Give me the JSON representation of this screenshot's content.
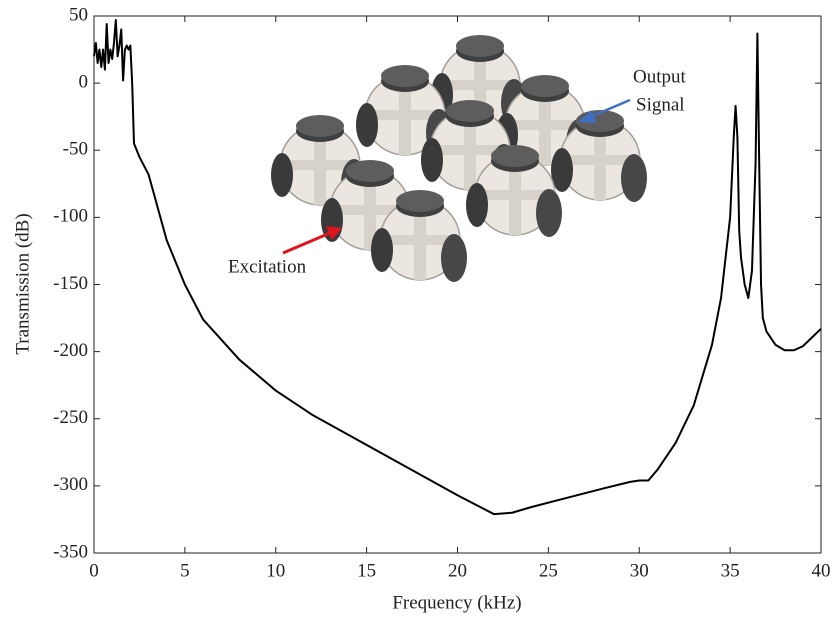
{
  "chart_data": {
    "type": "line",
    "xlabel": "Frequency (kHz)",
    "ylabel": "Transmission (dB)",
    "annotations": [
      "Output",
      "Signal",
      "Excitation"
    ],
    "color": "#000000",
    "x": [
      0,
      0.1,
      0.2,
      0.3,
      0.4,
      0.5,
      0.6,
      0.7,
      0.8,
      0.9,
      1.0,
      1.1,
      1.2,
      1.3,
      1.4,
      1.5,
      1.6,
      1.7,
      1.8,
      1.9,
      2.0,
      2.1,
      2.2,
      2.5,
      3,
      4,
      5,
      6,
      8,
      10,
      12,
      14,
      16,
      18,
      20,
      22,
      23,
      24,
      26,
      28,
      29.5,
      30,
      30.5,
      31,
      32,
      33,
      34,
      34.5,
      35,
      35.2,
      35.3,
      35.4,
      35.5,
      35.6,
      35.8,
      36,
      36.2,
      36.4,
      36.5,
      36.6,
      36.7,
      36.8,
      37,
      37.5,
      38,
      38.5,
      39,
      40
    ],
    "values": [
      20,
      30,
      15,
      25,
      12,
      25,
      10,
      44,
      15,
      25,
      18,
      30,
      47,
      20,
      28,
      40,
      2,
      25,
      28,
      25,
      28,
      0,
      -45,
      -55,
      -68,
      -117,
      -150,
      -176,
      -206,
      -229,
      -247,
      -262,
      -277,
      -292,
      -307,
      -321,
      -320,
      -316,
      -309,
      -302,
      -297,
      -296,
      -296,
      -288,
      -268,
      -240,
      -195,
      -160,
      -100,
      -40,
      -17,
      -40,
      -110,
      -130,
      -150,
      -160,
      -140,
      -60,
      37,
      -60,
      -150,
      -175,
      -185,
      -195,
      -199,
      -199,
      -196,
      -183
    ],
    "xlim": [
      0,
      40
    ],
    "ylim": [
      -350,
      50
    ],
    "xticks": [
      0,
      5,
      10,
      15,
      20,
      25,
      30,
      35,
      40
    ],
    "yticks": [
      -350,
      -300,
      -250,
      -200,
      -150,
      -100,
      -50,
      0,
      50
    ]
  }
}
